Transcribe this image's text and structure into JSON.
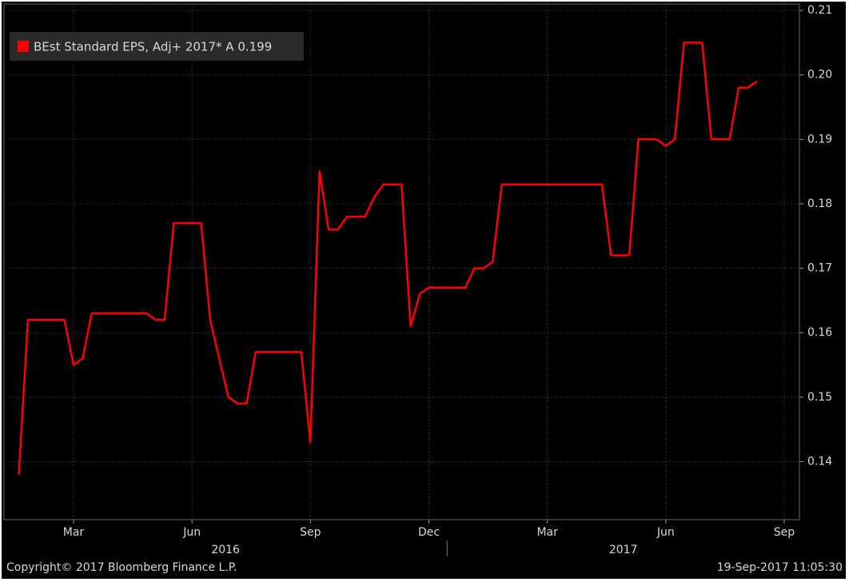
{
  "chart_data": {
    "type": "line",
    "categories": [
      null,
      null,
      null,
      null,
      null,
      null,
      "Mar",
      null,
      null,
      null,
      null,
      null,
      null,
      null,
      null,
      null,
      null,
      null,
      null,
      "Jun",
      null,
      null,
      null,
      null,
      null,
      null,
      null,
      null,
      null,
      null,
      null,
      null,
      "Sep",
      null,
      null,
      null,
      null,
      null,
      null,
      null,
      null,
      null,
      null,
      null,
      null,
      "Dec",
      null,
      null,
      null,
      null,
      null,
      null,
      null,
      null,
      null,
      null,
      null,
      null,
      "Mar",
      null,
      null,
      null,
      null,
      null,
      null,
      null,
      null,
      null,
      null,
      null,
      null,
      "Jun",
      null,
      null,
      null,
      null,
      null,
      null,
      null,
      null,
      null,
      null,
      null,
      null,
      "Sep"
    ],
    "x_groups": [
      "2016",
      "2017"
    ],
    "series": [
      {
        "name": "BEst Standard EPS, Adj+ 2017* A 0.199",
        "color": "#ff0000",
        "values": [
          0.138,
          0.162,
          0.162,
          0.162,
          0.162,
          0.162,
          0.155,
          0.156,
          0.163,
          0.163,
          0.163,
          0.163,
          0.163,
          0.163,
          0.163,
          0.162,
          0.162,
          0.177,
          0.177,
          0.177,
          0.177,
          0.162,
          0.156,
          0.15,
          0.149,
          0.149,
          0.157,
          0.157,
          0.157,
          0.157,
          0.157,
          0.157,
          0.143,
          0.185,
          0.176,
          0.176,
          0.178,
          0.178,
          0.178,
          0.181,
          0.183,
          0.183,
          0.183,
          0.161,
          0.166,
          0.167,
          0.167,
          0.167,
          0.167,
          0.167,
          0.17,
          0.17,
          0.171,
          0.183,
          0.183,
          0.183,
          0.183,
          0.183,
          0.183,
          0.183,
          0.183,
          0.183,
          0.183,
          0.183,
          0.183,
          0.172,
          0.172,
          0.172,
          0.19,
          0.19,
          0.19,
          0.189,
          0.19,
          0.205,
          0.205,
          0.205,
          0.19,
          0.19,
          0.19,
          0.198,
          0.198,
          0.199,
          null,
          null,
          null
        ]
      }
    ],
    "ylim": [
      0.131,
      0.211
    ],
    "yticks": [
      0.14,
      0.15,
      0.16,
      0.17,
      0.18,
      0.19,
      {
        "value": 0.2,
        "label": "0.20"
      },
      0.21
    ],
    "y_axis_side": "right",
    "grid": true,
    "legend": "top-left",
    "copyright": "Copyright© 2017 Bloomberg Finance L.P.",
    "timestamp": "19-Sep-2017 11:05:30"
  }
}
